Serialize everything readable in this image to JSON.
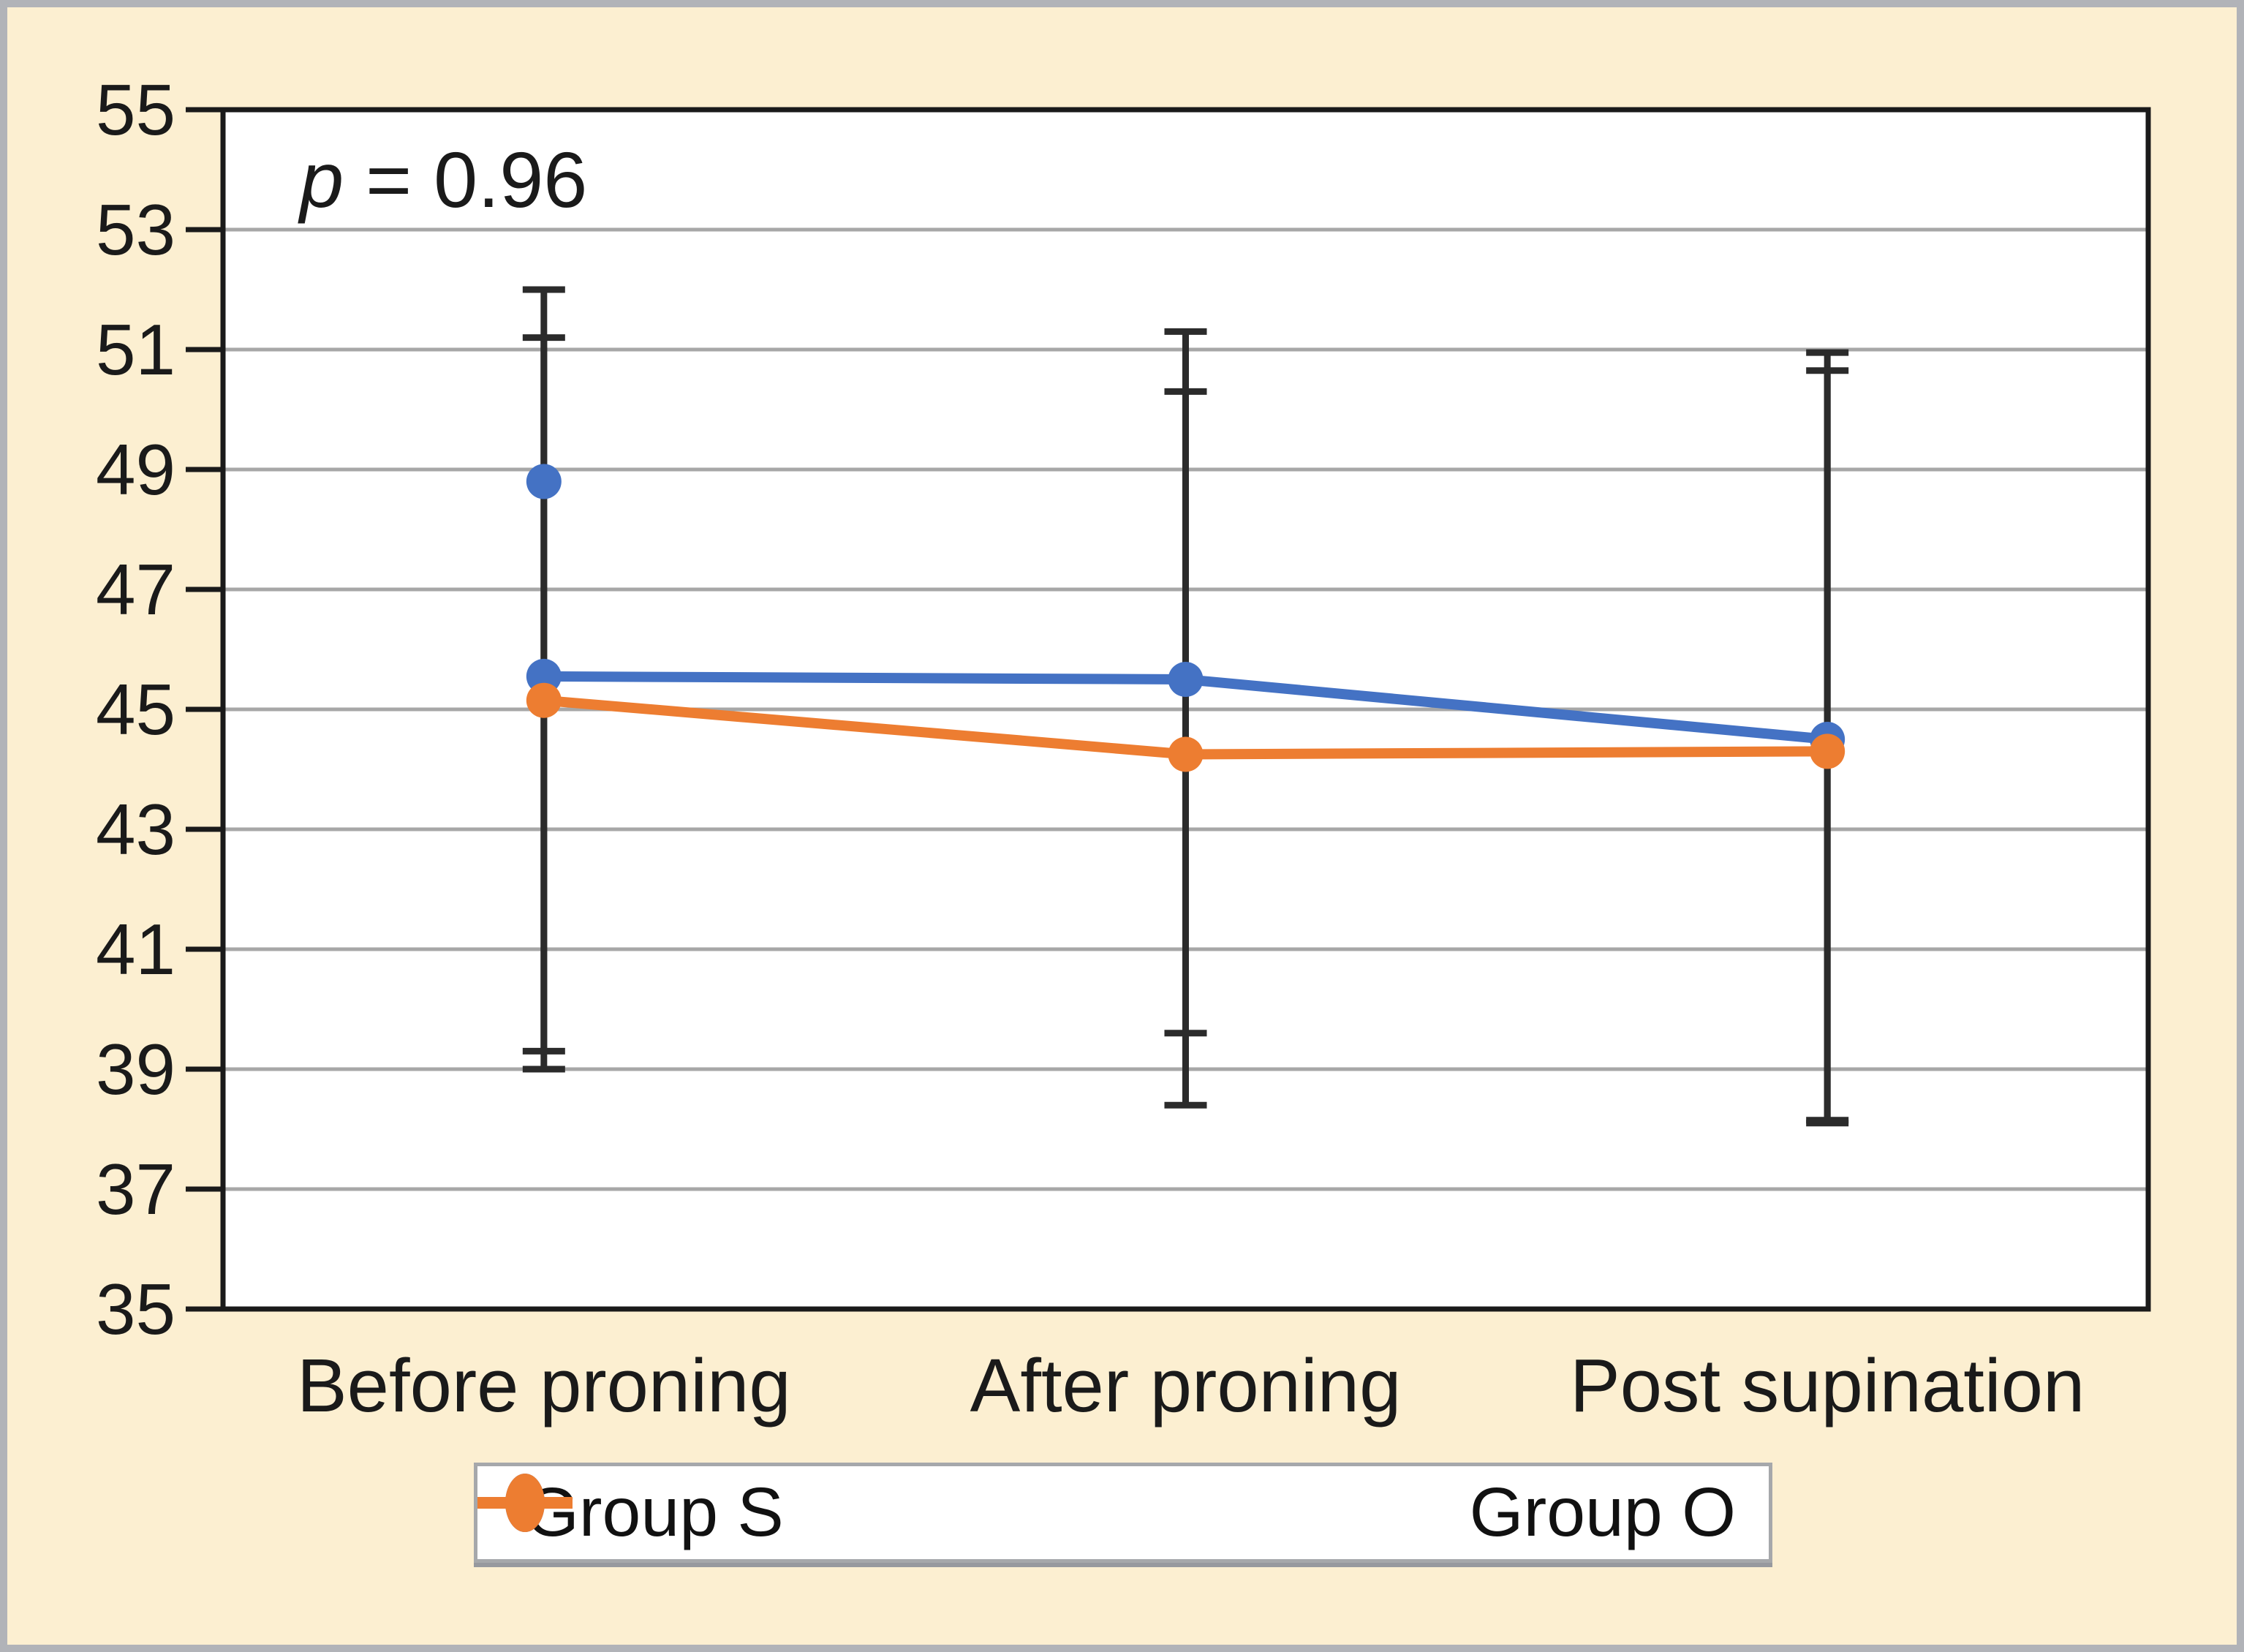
{
  "figure": {
    "background_color": "#fcefd1",
    "frame_color": "#b1b3b8",
    "plot_background": "#ffffff",
    "axis_border_color": "#1a1a1a"
  },
  "annotation": {
    "italic_part": "p",
    "rest_part": " = 0.96"
  },
  "chart_data": {
    "type": "line",
    "title": "",
    "xlabel": "",
    "ylabel": "",
    "categories": [
      "Before proning",
      "After proning",
      "Post supination"
    ],
    "series": [
      {
        "name": "Group S",
        "color": "#4472c4",
        "values": [
          45.55,
          45.5,
          44.5
        ],
        "error_bars": [
          {
            "low": 39.0,
            "high": 52.0
          },
          {
            "low": 39.6,
            "high": 51.3
          },
          {
            "low": 38.1,
            "high": 50.95
          }
        ]
      },
      {
        "name": "Group O",
        "color": "#ed7d31",
        "values": [
          45.15,
          44.25,
          44.3
        ],
        "error_bars": [
          {
            "low": 39.3,
            "high": 51.2
          },
          {
            "low": 38.4,
            "high": 50.3
          },
          {
            "low": 38.15,
            "high": 50.65
          }
        ]
      }
    ],
    "extra_points": [
      {
        "series": "Group S",
        "category": "Before proning",
        "value": 48.8,
        "color": "#4472c4"
      }
    ],
    "annotation_text": "p = 0.96",
    "y_axis": {
      "min": 35,
      "max": 55,
      "tick_step": 2,
      "ticks": [
        55,
        53,
        51,
        49,
        47,
        45,
        43,
        41,
        39,
        37,
        35
      ]
    },
    "ylim": [
      35,
      55
    ],
    "grid": true,
    "gridline_color": "#a7a7a7",
    "error_bar_color": "#2b2b2b",
    "legend_position": "bottom"
  }
}
